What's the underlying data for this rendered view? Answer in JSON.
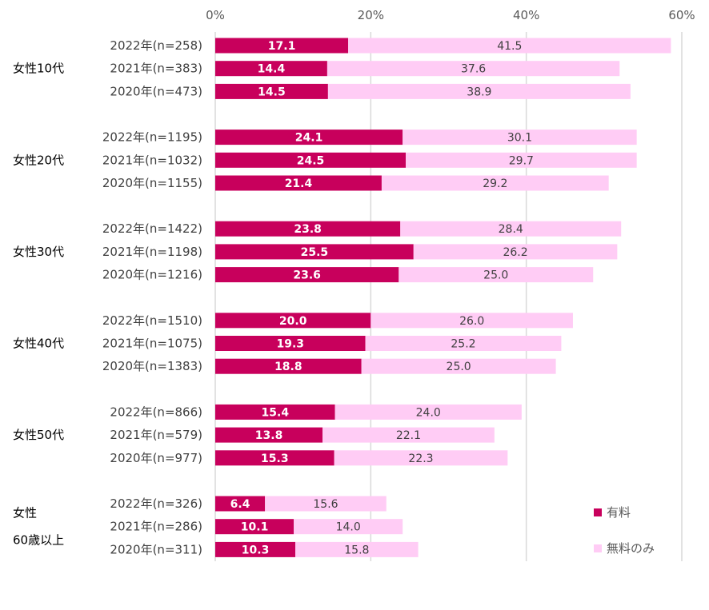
{
  "chart_data": {
    "type": "bar",
    "orientation": "horizontal",
    "stacked": true,
    "title": "",
    "xlabel": "",
    "ylabel": "",
    "xlim": [
      0,
      60
    ],
    "ticks": [
      "0%",
      "20%",
      "40%",
      "60%"
    ],
    "tick_values": [
      0,
      20,
      40,
      60
    ],
    "grid": true,
    "legend_position": "bottom-right",
    "series": [
      {
        "name": "有料",
        "color": "#c8005c"
      },
      {
        "name": "無料のみ",
        "color": "#ffccf5"
      }
    ],
    "groups": [
      {
        "label_lines": [
          "女性10代"
        ],
        "rows": [
          {
            "label": "2022年(n=258)",
            "paid": 17.1,
            "free": 41.5,
            "paid_label": "17.1",
            "free_label": "41.5"
          },
          {
            "label": "2021年(n=383)",
            "paid": 14.4,
            "free": 37.6,
            "paid_label": "14.4",
            "free_label": "37.6"
          },
          {
            "label": "2020年(n=473)",
            "paid": 14.5,
            "free": 38.9,
            "paid_label": "14.5",
            "free_label": "38.9"
          }
        ]
      },
      {
        "label_lines": [
          "女性20代"
        ],
        "rows": [
          {
            "label": "2022年(n=1195)",
            "paid": 24.1,
            "free": 30.1,
            "paid_label": "24.1",
            "free_label": "30.1"
          },
          {
            "label": "2021年(n=1032)",
            "paid": 24.5,
            "free": 29.7,
            "paid_label": "24.5",
            "free_label": "29.7"
          },
          {
            "label": "2020年(n=1155)",
            "paid": 21.4,
            "free": 29.2,
            "paid_label": "21.4",
            "free_label": "29.2"
          }
        ]
      },
      {
        "label_lines": [
          "女性30代"
        ],
        "rows": [
          {
            "label": "2022年(n=1422)",
            "paid": 23.8,
            "free": 28.4,
            "paid_label": "23.8",
            "free_label": "28.4"
          },
          {
            "label": "2021年(n=1198)",
            "paid": 25.5,
            "free": 26.2,
            "paid_label": "25.5",
            "free_label": "26.2"
          },
          {
            "label": "2020年(n=1216)",
            "paid": 23.6,
            "free": 25.0,
            "paid_label": "23.6",
            "free_label": "25.0"
          }
        ]
      },
      {
        "label_lines": [
          "女性40代"
        ],
        "rows": [
          {
            "label": "2022年(n=1510)",
            "paid": 20.0,
            "free": 26.0,
            "paid_label": "20.0",
            "free_label": "26.0"
          },
          {
            "label": "2021年(n=1075)",
            "paid": 19.3,
            "free": 25.2,
            "paid_label": "19.3",
            "free_label": "25.2"
          },
          {
            "label": "2020年(n=1383)",
            "paid": 18.8,
            "free": 25.0,
            "paid_label": "18.8",
            "free_label": "25.0"
          }
        ]
      },
      {
        "label_lines": [
          "女性50代"
        ],
        "rows": [
          {
            "label": "2022年(n=866)",
            "paid": 15.4,
            "free": 24.0,
            "paid_label": "15.4",
            "free_label": "24.0"
          },
          {
            "label": "2021年(n=579)",
            "paid": 13.8,
            "free": 22.1,
            "paid_label": "13.8",
            "free_label": "22.1"
          },
          {
            "label": "2020年(n=977)",
            "paid": 15.3,
            "free": 22.3,
            "paid_label": "15.3",
            "free_label": "22.3"
          }
        ]
      },
      {
        "label_lines": [
          "女性",
          "60歳以上"
        ],
        "rows": [
          {
            "label": "2022年(n=326)",
            "paid": 6.4,
            "free": 15.6,
            "paid_label": "6.4",
            "free_label": "15.6"
          },
          {
            "label": "2021年(n=286)",
            "paid": 10.1,
            "free": 14.0,
            "paid_label": "10.1",
            "free_label": "14.0"
          },
          {
            "label": "2020年(n=311)",
            "paid": 10.3,
            "free": 15.8,
            "paid_label": "10.3",
            "free_label": "15.8"
          }
        ]
      }
    ]
  }
}
